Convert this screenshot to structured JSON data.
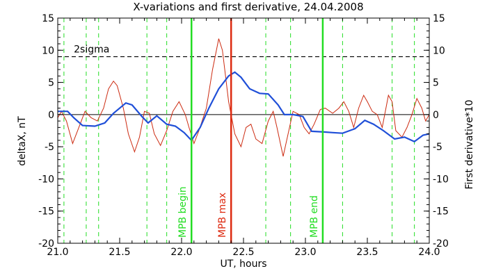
{
  "chart_data": {
    "type": "line",
    "title": "X-variations and first derivative, 24.04.2008",
    "xlabel": "UT, hours",
    "ylabel_left": "deltaX, nT",
    "ylabel_right": "First derivative*10",
    "xlim": [
      21.0,
      24.0
    ],
    "ylim": [
      -20,
      15
    ],
    "x_ticks": [
      "21.0",
      "21.5",
      "22.0",
      "22.5",
      "23.0",
      "23.5",
      "24.0"
    ],
    "y_ticks": [
      "15",
      "10",
      "5",
      "0",
      "-5",
      "-10",
      "-15",
      "-20"
    ],
    "y_ticks_right": [
      "15",
      "10",
      "5",
      "0",
      "-5",
      "-10",
      "-15",
      "-20"
    ],
    "sigma_label": "2sigma",
    "sigma_level": 9,
    "series_colors": {
      "deltaX": "#1f4fd8",
      "derivative": "#cc2a10",
      "markers": "#22dd22",
      "max": "#dd2a10"
    },
    "series": [
      {
        "id": "deltaX",
        "points": [
          [
            21.0,
            0.5
          ],
          [
            21.08,
            0.5
          ],
          [
            21.13,
            -0.5
          ],
          [
            21.2,
            -1.7
          ],
          [
            21.3,
            -1.8
          ],
          [
            21.38,
            -1.3
          ],
          [
            21.45,
            0.2
          ],
          [
            21.55,
            1.8
          ],
          [
            21.6,
            1.5
          ],
          [
            21.68,
            -0.3
          ],
          [
            21.73,
            -1.3
          ],
          [
            21.8,
            -0.2
          ],
          [
            21.88,
            -1.5
          ],
          [
            21.95,
            -1.8
          ],
          [
            22.02,
            -2.8
          ],
          [
            22.08,
            -4.0
          ],
          [
            22.15,
            -2.0
          ],
          [
            22.22,
            1.0
          ],
          [
            22.3,
            4.0
          ],
          [
            22.38,
            6.0
          ],
          [
            22.43,
            6.6
          ],
          [
            22.48,
            5.8
          ],
          [
            22.55,
            4.0
          ],
          [
            22.63,
            3.3
          ],
          [
            22.7,
            3.2
          ],
          [
            22.78,
            1.5
          ],
          [
            22.83,
            0.0
          ],
          [
            22.9,
            0.0
          ],
          [
            22.98,
            -0.3
          ],
          [
            23.05,
            -2.6
          ],
          [
            23.15,
            -2.7
          ],
          [
            23.22,
            -2.8
          ],
          [
            23.3,
            -2.9
          ],
          [
            23.4,
            -2.2
          ],
          [
            23.48,
            -0.9
          ],
          [
            23.55,
            -1.5
          ],
          [
            23.63,
            -2.5
          ],
          [
            23.72,
            -3.8
          ],
          [
            23.8,
            -3.5
          ],
          [
            23.88,
            -4.2
          ],
          [
            23.95,
            -3.2
          ],
          [
            24.0,
            -3.0
          ]
        ]
      },
      {
        "id": "derivative",
        "points": [
          [
            21.0,
            -0.5
          ],
          [
            21.03,
            0.5
          ],
          [
            21.07,
            -1.0
          ],
          [
            21.12,
            -4.5
          ],
          [
            21.17,
            -2.0
          ],
          [
            21.22,
            0.5
          ],
          [
            21.27,
            -0.5
          ],
          [
            21.32,
            -1.0
          ],
          [
            21.37,
            1.0
          ],
          [
            21.41,
            4.0
          ],
          [
            21.45,
            5.2
          ],
          [
            21.48,
            4.5
          ],
          [
            21.53,
            1.0
          ],
          [
            21.57,
            -3.0
          ],
          [
            21.62,
            -5.8
          ],
          [
            21.66,
            -3.5
          ],
          [
            21.7,
            0.5
          ],
          [
            21.74,
            0.2
          ],
          [
            21.78,
            -3.0
          ],
          [
            21.83,
            -4.8
          ],
          [
            21.88,
            -2.5
          ],
          [
            21.93,
            0.5
          ],
          [
            21.98,
            2.0
          ],
          [
            22.03,
            0.0
          ],
          [
            22.06,
            -2.0
          ],
          [
            22.1,
            -4.5
          ],
          [
            22.14,
            -2.5
          ],
          [
            22.2,
            1.0
          ],
          [
            22.25,
            7.0
          ],
          [
            22.3,
            11.8
          ],
          [
            22.33,
            10.0
          ],
          [
            22.38,
            2.0
          ],
          [
            22.43,
            -3.0
          ],
          [
            22.48,
            -5.0
          ],
          [
            22.52,
            -2.0
          ],
          [
            22.56,
            -1.5
          ],
          [
            22.6,
            -3.8
          ],
          [
            22.65,
            -4.5
          ],
          [
            22.7,
            -1.0
          ],
          [
            22.74,
            0.5
          ],
          [
            22.77,
            -2.0
          ],
          [
            22.82,
            -6.5
          ],
          [
            22.86,
            -3.0
          ],
          [
            22.9,
            0.5
          ],
          [
            22.95,
            0.0
          ],
          [
            22.99,
            -2.0
          ],
          [
            23.03,
            -3.0
          ],
          [
            23.07,
            -1.5
          ],
          [
            23.12,
            0.8
          ],
          [
            23.16,
            1.0
          ],
          [
            23.22,
            0.2
          ],
          [
            23.27,
            1.0
          ],
          [
            23.31,
            2.0
          ],
          [
            23.35,
            0.5
          ],
          [
            23.39,
            -2.0
          ],
          [
            23.43,
            1.0
          ],
          [
            23.47,
            3.0
          ],
          [
            23.5,
            2.0
          ],
          [
            23.54,
            0.5
          ],
          [
            23.58,
            0.0
          ],
          [
            23.62,
            -2.0
          ],
          [
            23.67,
            3.0
          ],
          [
            23.7,
            2.0
          ],
          [
            23.73,
            -2.5
          ],
          [
            23.78,
            -3.5
          ],
          [
            23.82,
            -2.0
          ],
          [
            23.86,
            0.0
          ],
          [
            23.9,
            2.5
          ],
          [
            23.94,
            1.0
          ],
          [
            23.97,
            -1.0
          ],
          [
            24.0,
            0.0
          ]
        ]
      }
    ],
    "dashed_verticals": [
      21.05,
      21.23,
      21.33,
      21.72,
      21.88,
      22.68,
      22.88,
      23.3,
      23.7,
      23.88
    ],
    "markers": [
      {
        "x": 22.08,
        "label": "MPB begin",
        "role": "begin"
      },
      {
        "x": 22.4,
        "label": "MPB max",
        "role": "max"
      },
      {
        "x": 23.14,
        "label": "MPB end",
        "role": "end"
      }
    ]
  }
}
